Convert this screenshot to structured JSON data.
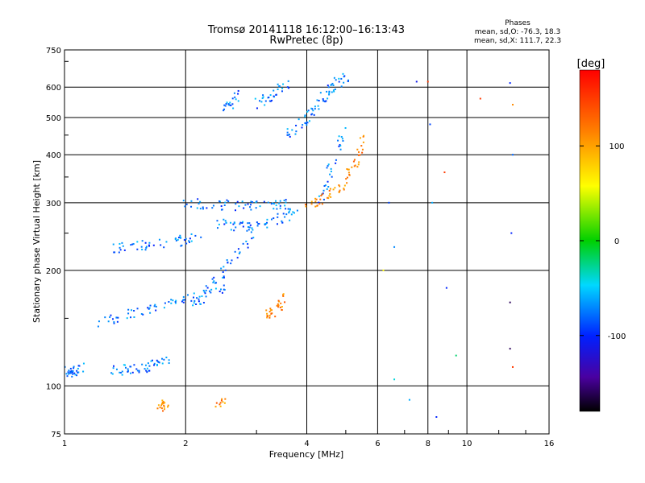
{
  "chart_data": {
    "type": "scatter",
    "title": "Tromsø 20141118 16:12:00–16:13:43",
    "subtitle": "RwPretec (8p)",
    "xlabel": "Frequency [MHz]",
    "ylabel": "Stationary phase Virtual Height [km]",
    "x_scale": "log",
    "y_scale": "log",
    "xlim": [
      1,
      16
    ],
    "ylim": [
      75,
      750
    ],
    "x_ticks": [
      1,
      2,
      4,
      6,
      8,
      10,
      16
    ],
    "x_tick_labels": [
      "1",
      "2",
      "4",
      "6",
      "8",
      "10",
      "16"
    ],
    "y_ticks": [
      75,
      100,
      200,
      300,
      400,
      500,
      600,
      750
    ],
    "y_tick_labels": [
      "75",
      "100",
      "200",
      "300",
      "400",
      "500",
      "600",
      "750"
    ],
    "grid": true,
    "legend": {
      "title": "Phases",
      "entries": [
        "mean, sd,O: -76.3, 18.3",
        "mean, sd,X: 111.7, 22.3"
      ],
      "position": "top-right"
    },
    "colorbar": {
      "label": "[deg]",
      "range": [
        -180,
        180
      ],
      "ticks": [
        100,
        0,
        -100
      ],
      "tick_labels": [
        "100",
        "0",
        "-100"
      ],
      "position": "right"
    },
    "series": [
      {
        "name": "O",
        "color_value": -76,
        "segments": [
          {
            "x": [
              1.0,
              1.03,
              1.06,
              1.1
            ],
            "y": [
              110,
              108,
              110,
              112
            ]
          },
          {
            "x": [
              1.3,
              1.4,
              1.5,
              1.6,
              1.7,
              1.8
            ],
            "y": [
              110,
              110,
              111,
              112,
              114,
              116
            ]
          },
          {
            "x": [
              1.2,
              1.35,
              1.5,
              1.7,
              1.9,
              2.1,
              2.3,
              2.5
            ],
            "y": [
              145,
              150,
              155,
              160,
              165,
              170,
              175,
              178
            ]
          },
          {
            "x": [
              1.3,
              1.45,
              1.6,
              1.8,
              2.0,
              2.2
            ],
            "y": [
              228,
              230,
              232,
              235,
              240,
              250
            ]
          },
          {
            "x": [
              2.0,
              2.2,
              2.5,
              2.8,
              3.1,
              3.4,
              3.7
            ],
            "y": [
              300,
              298,
              296,
              295,
              295,
              296,
              298
            ]
          },
          {
            "x": [
              2.4,
              2.6,
              2.8,
              3.0,
              3.2,
              3.5,
              3.8
            ],
            "y": [
              265,
              262,
              260,
              262,
              268,
              275,
              285
            ]
          },
          {
            "x": [
              2.5,
              2.6,
              2.7
            ],
            "y": [
              530,
              550,
              575
            ]
          },
          {
            "x": [
              3.0,
              3.2,
              3.4,
              3.6
            ],
            "y": [
              540,
              560,
              590,
              620
            ]
          },
          {
            "x": [
              3.6,
              3.8,
              4.0,
              4.2,
              4.4,
              4.6,
              4.8,
              5.0
            ],
            "y": [
              450,
              470,
              500,
              530,
              560,
              590,
              620,
              640
            ]
          },
          {
            "x": [
              4.3,
              4.5,
              4.7,
              5.0
            ],
            "y": [
              300,
              340,
              400,
              460
            ]
          },
          {
            "x": [
              2.1,
              2.3,
              2.5,
              2.7,
              3.0
            ],
            "y": [
              160,
              180,
              200,
              220,
              250
            ]
          }
        ]
      },
      {
        "name": "X",
        "color_value": 112,
        "segments": [
          {
            "x": [
              4.0,
              4.3,
              4.6,
              4.9,
              5.2,
              5.4,
              5.6
            ],
            "y": [
              295,
              302,
              315,
              335,
              365,
              405,
              470
            ]
          },
          {
            "x": [
              3.1,
              3.25,
              3.4,
              3.5
            ],
            "y": [
              150,
              155,
              160,
              170
            ]
          },
          {
            "x": [
              1.7,
              1.75,
              1.8
            ],
            "y": [
              88,
              90,
              88
            ]
          },
          {
            "x": [
              2.4,
              2.5
            ],
            "y": [
              90,
              92
            ]
          }
        ]
      }
    ],
    "sparse_points": [
      {
        "x": 6.4,
        "y": 300,
        "phase": -90
      },
      {
        "x": 6.6,
        "y": 230,
        "phase": -70
      },
      {
        "x": 6.2,
        "y": 200,
        "phase": 60
      },
      {
        "x": 6.6,
        "y": 104,
        "phase": -40
      },
      {
        "x": 7.2,
        "y": 92,
        "phase": -60
      },
      {
        "x": 7.5,
        "y": 620,
        "phase": -110
      },
      {
        "x": 8.1,
        "y": 480,
        "phase": -90
      },
      {
        "x": 8.2,
        "y": 300,
        "phase": -60
      },
      {
        "x": 8.4,
        "y": 83,
        "phase": -100
      },
      {
        "x": 8.8,
        "y": 360,
        "phase": 150
      },
      {
        "x": 8.9,
        "y": 180,
        "phase": -100
      },
      {
        "x": 9.4,
        "y": 120,
        "phase": -20
      },
      {
        "x": 8.0,
        "y": 620,
        "phase": 150
      },
      {
        "x": 10.8,
        "y": 560,
        "phase": 150
      },
      {
        "x": 12.8,
        "y": 615,
        "phase": -100
      },
      {
        "x": 13.0,
        "y": 540,
        "phase": 110
      },
      {
        "x": 13.0,
        "y": 400,
        "phase": -80
      },
      {
        "x": 12.9,
        "y": 250,
        "phase": -100
      },
      {
        "x": 12.8,
        "y": 165,
        "phase": -160
      },
      {
        "x": 12.8,
        "y": 125,
        "phase": -160
      },
      {
        "x": 13.0,
        "y": 112,
        "phase": 150
      }
    ]
  }
}
